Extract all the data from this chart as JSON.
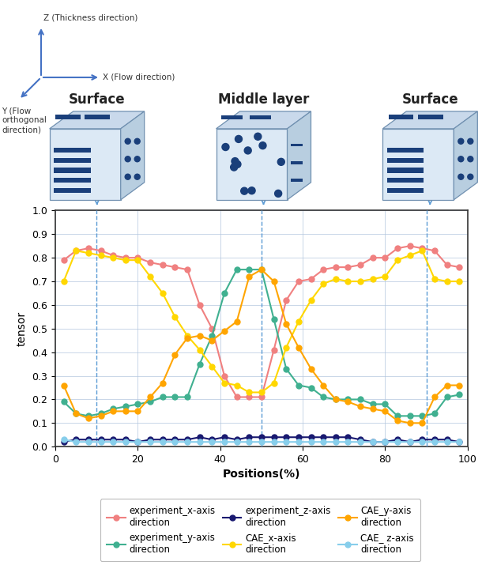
{
  "positions": [
    2,
    5,
    8,
    11,
    14,
    17,
    20,
    23,
    26,
    29,
    32,
    35,
    38,
    41,
    44,
    47,
    50,
    53,
    56,
    59,
    62,
    65,
    68,
    71,
    74,
    77,
    80,
    83,
    86,
    89,
    92,
    95,
    98
  ],
  "exp_x": [
    0.79,
    0.83,
    0.84,
    0.83,
    0.81,
    0.8,
    0.8,
    0.78,
    0.77,
    0.76,
    0.75,
    0.6,
    0.5,
    0.3,
    0.21,
    0.21,
    0.21,
    0.41,
    0.62,
    0.7,
    0.71,
    0.75,
    0.76,
    0.76,
    0.77,
    0.8,
    0.8,
    0.84,
    0.85,
    0.84,
    0.83,
    0.77,
    0.76
  ],
  "exp_y": [
    0.19,
    0.14,
    0.13,
    0.14,
    0.16,
    0.17,
    0.18,
    0.19,
    0.21,
    0.21,
    0.21,
    0.35,
    0.47,
    0.65,
    0.75,
    0.75,
    0.75,
    0.54,
    0.33,
    0.26,
    0.25,
    0.21,
    0.2,
    0.2,
    0.2,
    0.18,
    0.18,
    0.13,
    0.13,
    0.13,
    0.14,
    0.21,
    0.22
  ],
  "exp_z": [
    0.02,
    0.03,
    0.03,
    0.03,
    0.03,
    0.03,
    0.02,
    0.03,
    0.03,
    0.03,
    0.03,
    0.04,
    0.03,
    0.04,
    0.03,
    0.04,
    0.04,
    0.04,
    0.04,
    0.04,
    0.04,
    0.04,
    0.04,
    0.04,
    0.03,
    0.02,
    0.02,
    0.03,
    0.02,
    0.03,
    0.03,
    0.03,
    0.02
  ],
  "cae_x": [
    0.7,
    0.83,
    0.82,
    0.81,
    0.8,
    0.79,
    0.79,
    0.72,
    0.65,
    0.55,
    0.47,
    0.41,
    0.34,
    0.27,
    0.26,
    0.23,
    0.23,
    0.27,
    0.42,
    0.53,
    0.62,
    0.69,
    0.71,
    0.7,
    0.7,
    0.71,
    0.72,
    0.79,
    0.81,
    0.83,
    0.71,
    0.7,
    0.7
  ],
  "cae_y": [
    0.26,
    0.14,
    0.12,
    0.13,
    0.15,
    0.15,
    0.15,
    0.21,
    0.27,
    0.39,
    0.46,
    0.47,
    0.45,
    0.49,
    0.53,
    0.72,
    0.75,
    0.7,
    0.52,
    0.42,
    0.33,
    0.26,
    0.2,
    0.19,
    0.17,
    0.16,
    0.15,
    0.11,
    0.1,
    0.1,
    0.21,
    0.26,
    0.26
  ],
  "cae_z": [
    0.03,
    0.02,
    0.02,
    0.02,
    0.02,
    0.02,
    0.02,
    0.02,
    0.02,
    0.02,
    0.02,
    0.02,
    0.02,
    0.02,
    0.02,
    0.02,
    0.02,
    0.02,
    0.02,
    0.02,
    0.02,
    0.02,
    0.02,
    0.02,
    0.02,
    0.02,
    0.02,
    0.02,
    0.02,
    0.02,
    0.02,
    0.02,
    0.02
  ],
  "color_exp_x": "#f08080",
  "color_exp_y": "#40b090",
  "color_exp_z": "#191970",
  "color_cae_x": "#ffd700",
  "color_cae_y": "#ffa500",
  "color_cae_z": "#87ceeb",
  "vlines": [
    10,
    50,
    90
  ],
  "xlabel": "Positions(%)",
  "ylabel": "tensor",
  "ylim": [
    0,
    1.0
  ],
  "xlim": [
    0,
    100
  ],
  "yticks": [
    0,
    0.1,
    0.2,
    0.3,
    0.4,
    0.5,
    0.6,
    0.7,
    0.8,
    0.9,
    1
  ],
  "xticks": [
    0,
    20,
    40,
    60,
    80,
    100
  ],
  "legend_labels": [
    "experiment_x-axis\ndirection",
    "experiment_y-axis\ndirection",
    "experiment_z-axis\ndirection",
    "CAE_x-axis\ndirection",
    "CAE_y-axis\ndirection",
    "CAE_ z-axis\ndirection"
  ],
  "layer_labels": [
    "Surface",
    "Middle layer",
    "Surface"
  ],
  "coord_color": "#4472c4",
  "cube_front_color": "#dce9f5",
  "cube_top_color": "#c9d9eb",
  "cube_right_color": "#b8cee0",
  "cube_edge_color": "#7090b0",
  "fiber_color": "#1a3f7a"
}
